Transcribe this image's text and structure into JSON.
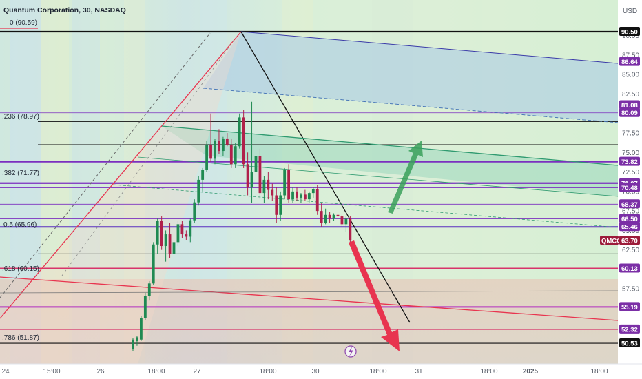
{
  "header": {
    "title": "Quantum Corporation, 30, NASDAQ",
    "currency": "USD"
  },
  "colors": {
    "candle_up": "#1f8a52",
    "candle_down": "#b0204a",
    "tag_purple": "#7b2fa6",
    "tag_black": "#111111",
    "tag_price": "#9c1c3a",
    "fib_red": "#e8344f",
    "arrow_green": "#3aa05a",
    "arrow_red": "#e8344f",
    "level_purple": "#7b2fbf"
  },
  "chart_data": {
    "type": "candlestick",
    "title": "Quantum Corporation, 30, NASDAQ",
    "symbol": "QMCO",
    "last_price": "63.70",
    "ylim": [
      49.5,
      93.8
    ],
    "y_ticks": [
      "90.00",
      "87.50",
      "85.00",
      "82.50",
      "80.00",
      "77.50",
      "75.00",
      "72.50",
      "70.00",
      "67.50",
      "65.00",
      "62.50",
      "60.00",
      "57.50",
      "55.00",
      "52.50"
    ],
    "x_ticks": [
      "24",
      "15:00",
      "26",
      "18:00",
      "27",
      "18:00",
      "30",
      "18:00",
      "31",
      "18:00",
      "2025",
      "18:00"
    ],
    "price_tags": [
      {
        "label": "90.50",
        "value": 90.5,
        "style": "black"
      },
      {
        "label": "86.64",
        "value": 86.64,
        "style": "purple"
      },
      {
        "label": "81.08",
        "value": 81.08,
        "style": "purple"
      },
      {
        "label": "80.09",
        "value": 80.09,
        "style": "purple"
      },
      {
        "label": "73.82",
        "value": 73.82,
        "style": "purple"
      },
      {
        "label": "71.07",
        "value": 71.07,
        "style": "purple"
      },
      {
        "label": "70.48",
        "value": 70.48,
        "style": "purple"
      },
      {
        "label": "68.37",
        "value": 68.37,
        "style": "purple"
      },
      {
        "label": "66.50",
        "value": 66.5,
        "style": "purple"
      },
      {
        "label": "65.46",
        "value": 65.46,
        "style": "purple"
      },
      {
        "label": "60.13",
        "value": 60.13,
        "style": "purple"
      },
      {
        "label": "55.19",
        "value": 55.19,
        "style": "purple"
      },
      {
        "label": "52.32",
        "value": 52.32,
        "style": "purple"
      },
      {
        "label": "50.53",
        "value": 50.53,
        "style": "black"
      }
    ],
    "fib_labels": [
      {
        "label": "0 (90.59)",
        "value": 90.59
      },
      {
        "label": ".236 (78.97)",
        "value": 78.97
      },
      {
        "label": ".382 (71.77)",
        "value": 71.77
      },
      {
        "label": "0.5 (65.96)",
        "value": 65.96
      },
      {
        "label": ".618 (60.15)",
        "value": 60.15
      },
      {
        "label": ".786 (51.87)",
        "value": 51.87
      }
    ],
    "candles": [
      [
        49.8,
        51.2,
        49.5,
        51.0
      ],
      [
        50.8,
        51.5,
        50.2,
        51.3
      ],
      [
        51.0,
        54.0,
        50.8,
        53.8
      ],
      [
        53.8,
        57.0,
        53.5,
        56.6
      ],
      [
        56.6,
        58.5,
        56.0,
        58.2
      ],
      [
        58.2,
        63.5,
        58.0,
        63.2
      ],
      [
        63.2,
        66.5,
        62.0,
        66.2
      ],
      [
        66.2,
        66.8,
        62.5,
        63.0
      ],
      [
        63.0,
        65.0,
        61.0,
        64.5
      ],
      [
        64.5,
        66.0,
        61.5,
        62.0
      ],
      [
        62.0,
        64.0,
        60.5,
        63.5
      ],
      [
        63.5,
        66.2,
        63.0,
        65.8
      ],
      [
        65.8,
        66.2,
        64.0,
        64.5
      ],
      [
        64.5,
        65.0,
        63.8,
        64.2
      ],
      [
        64.2,
        66.5,
        63.5,
        66.3
      ],
      [
        66.3,
        69.0,
        66.0,
        68.6
      ],
      [
        68.6,
        72.0,
        68.2,
        71.5
      ],
      [
        71.5,
        73.0,
        70.0,
        72.8
      ],
      [
        72.8,
        76.5,
        72.5,
        76.0
      ],
      [
        76.0,
        80.0,
        73.8,
        74.2
      ],
      [
        74.2,
        76.8,
        73.5,
        76.5
      ],
      [
        76.5,
        78.0,
        74.8,
        75.2
      ],
      [
        75.2,
        77.0,
        74.5,
        76.8
      ],
      [
        76.8,
        77.5,
        75.8,
        76.0
      ],
      [
        76.0,
        76.8,
        73.0,
        73.5
      ],
      [
        73.5,
        76.2,
        73.0,
        75.8
      ],
      [
        75.8,
        80.0,
        75.5,
        79.5
      ],
      [
        79.5,
        80.5,
        73.0,
        73.5
      ],
      [
        73.5,
        75.0,
        69.5,
        70.5
      ],
      [
        70.5,
        81.5,
        68.5,
        72.5
      ],
      [
        72.5,
        75.0,
        70.5,
        74.5
      ],
      [
        74.5,
        75.5,
        69.0,
        69.8
      ],
      [
        69.8,
        72.0,
        68.5,
        71.5
      ],
      [
        71.5,
        72.5,
        69.0,
        70.2
      ],
      [
        70.2,
        71.0,
        68.8,
        69.5
      ],
      [
        69.5,
        70.5,
        66.0,
        67.0
      ],
      [
        67.0,
        70.0,
        66.2,
        69.5
      ],
      [
        69.5,
        73.0,
        69.0,
        72.8
      ],
      [
        72.8,
        73.5,
        68.5,
        69.0
      ],
      [
        69.0,
        70.5,
        68.5,
        70.0
      ],
      [
        70.0,
        70.5,
        68.8,
        69.2
      ],
      [
        69.2,
        69.8,
        68.5,
        69.6
      ],
      [
        69.6,
        70.2,
        68.8,
        69.0
      ],
      [
        69.0,
        70.0,
        68.6,
        69.8
      ],
      [
        69.8,
        70.6,
        69.2,
        70.3
      ],
      [
        70.3,
        70.8,
        67.0,
        67.5
      ],
      [
        67.5,
        68.5,
        65.5,
        66.0
      ],
      [
        66.0,
        67.8,
        65.8,
        67.0
      ],
      [
        67.0,
        67.4,
        66.0,
        66.5
      ],
      [
        66.5,
        67.2,
        66.2,
        67.0
      ],
      [
        67.0,
        67.8,
        66.5,
        66.8
      ],
      [
        66.8,
        67.0,
        65.5,
        65.8
      ],
      [
        65.8,
        66.8,
        64.8,
        66.5
      ],
      [
        66.5,
        66.8,
        63.0,
        63.7
      ]
    ],
    "levels": [
      90.5,
      86.64,
      81.08,
      80.09,
      73.82,
      71.07,
      70.48,
      68.37,
      66.5,
      65.46,
      60.13,
      55.19,
      52.32,
      50.53
    ],
    "grid": false
  }
}
